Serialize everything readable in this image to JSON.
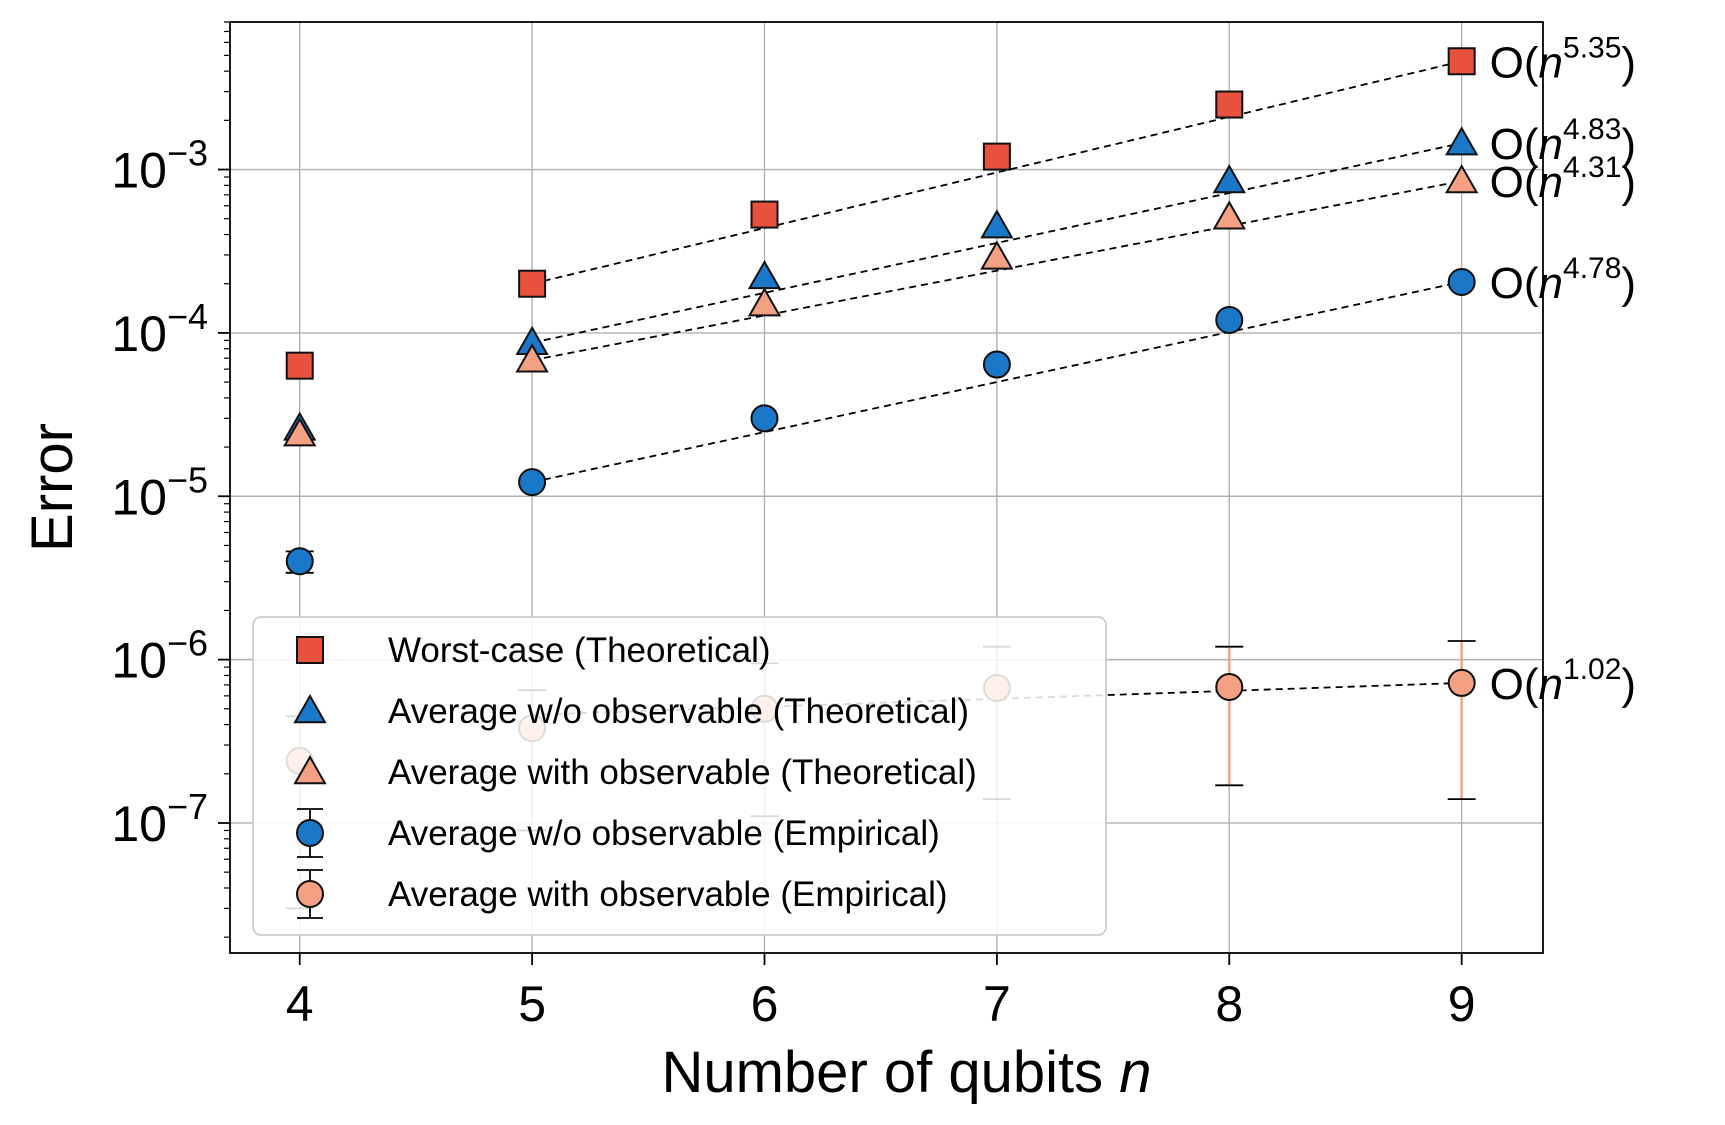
{
  "chart_data": {
    "type": "scatter",
    "x_scale": "linear",
    "y_scale": "log",
    "xlabel": "Number of qubits",
    "xlabel_var": "n",
    "ylabel": "Error",
    "xlim": [
      3.7,
      9.35
    ],
    "ylim": [
      1.6e-08,
      0.008
    ],
    "xticks": [
      4,
      5,
      6,
      7,
      8,
      9
    ],
    "xtick_labels": [
      "4",
      "5",
      "6",
      "7",
      "8",
      "9"
    ],
    "yticks": [
      1e-07,
      1e-06,
      1e-05,
      0.0001,
      0.001
    ],
    "ytick_labels": [
      {
        "base": "10",
        "exp": "−7"
      },
      {
        "base": "10",
        "exp": "−6"
      },
      {
        "base": "10",
        "exp": "−5"
      },
      {
        "base": "10",
        "exp": "−4"
      },
      {
        "base": "10",
        "exp": "−3"
      }
    ],
    "grid": true,
    "legend_position": "lower-left",
    "series": [
      {
        "name": "Worst-case (Theoretical)",
        "marker": "square",
        "color": "#E8513E",
        "x": [
          4,
          5,
          6,
          7,
          8,
          9
        ],
        "y": [
          6.3e-05,
          0.0002,
          0.00053,
          0.0012,
          0.0025,
          0.0046
        ],
        "fit": {
          "x": [
            5,
            9
          ],
          "y": [
            0.0002,
            0.0046
          ],
          "label_base": "O(n",
          "label_exp": "5.35",
          "label_close": ")"
        }
      },
      {
        "name": "Average w/o observable (Theoretical)",
        "marker": "triangle",
        "color": "#1B78C8",
        "x": [
          4,
          5,
          6,
          7,
          8,
          9
        ],
        "y": [
          2.6e-05,
          8.7e-05,
          0.00022,
          0.00045,
          0.00085,
          0.00145
        ],
        "fit": {
          "x": [
            5,
            9
          ],
          "y": [
            8.7e-05,
            0.00145
          ],
          "label_base": "O(n",
          "label_exp": "4.83",
          "label_close": ")"
        }
      },
      {
        "name": "Average with observable (Theoretical)",
        "marker": "triangle",
        "color": "#F4A183",
        "x": [
          4,
          5,
          6,
          7,
          8,
          9
        ],
        "y": [
          2.4e-05,
          6.8e-05,
          0.00015,
          0.00029,
          0.00051,
          0.00085
        ],
        "fit": {
          "x": [
            5,
            9
          ],
          "y": [
            6.8e-05,
            0.00085
          ],
          "label_base": "O(n",
          "label_exp": "4.31",
          "label_close": ")"
        }
      },
      {
        "name": "Average w/o observable (Empirical)",
        "marker": "circle",
        "color": "#1B78C8",
        "x": [
          4,
          5,
          6,
          7,
          8,
          9
        ],
        "y": [
          4e-06,
          1.22e-05,
          3e-05,
          6.4e-05,
          0.00012,
          0.000205
        ],
        "err_low": [
          3.4e-06,
          null,
          null,
          null,
          null,
          null
        ],
        "err_high": [
          4.6e-06,
          null,
          null,
          null,
          null,
          null
        ],
        "fit": {
          "x": [
            5,
            9
          ],
          "y": [
            1.22e-05,
            0.000205
          ],
          "label_base": "O(n",
          "label_exp": "4.78",
          "label_close": ")"
        }
      },
      {
        "name": "Average with observable (Empirical)",
        "marker": "circle",
        "color": "#F4A183",
        "x": [
          4,
          5,
          6,
          7,
          8,
          9
        ],
        "y": [
          2.4e-07,
          3.8e-07,
          5e-07,
          6.7e-07,
          6.8e-07,
          7.2e-07
        ],
        "err_low": [
          3e-08,
          9e-08,
          1.1e-07,
          1.4e-07,
          1.7e-07,
          1.4e-07
        ],
        "err_high": [
          4.5e-07,
          6.5e-07,
          9.5e-07,
          1.2e-06,
          1.2e-06,
          1.3e-06
        ],
        "fit": {
          "x": [
            5,
            9
          ],
          "y": [
            4.6e-07,
            7.2e-07
          ],
          "label_base": "O(n",
          "label_exp": "1.02",
          "label_close": ")"
        }
      }
    ]
  }
}
